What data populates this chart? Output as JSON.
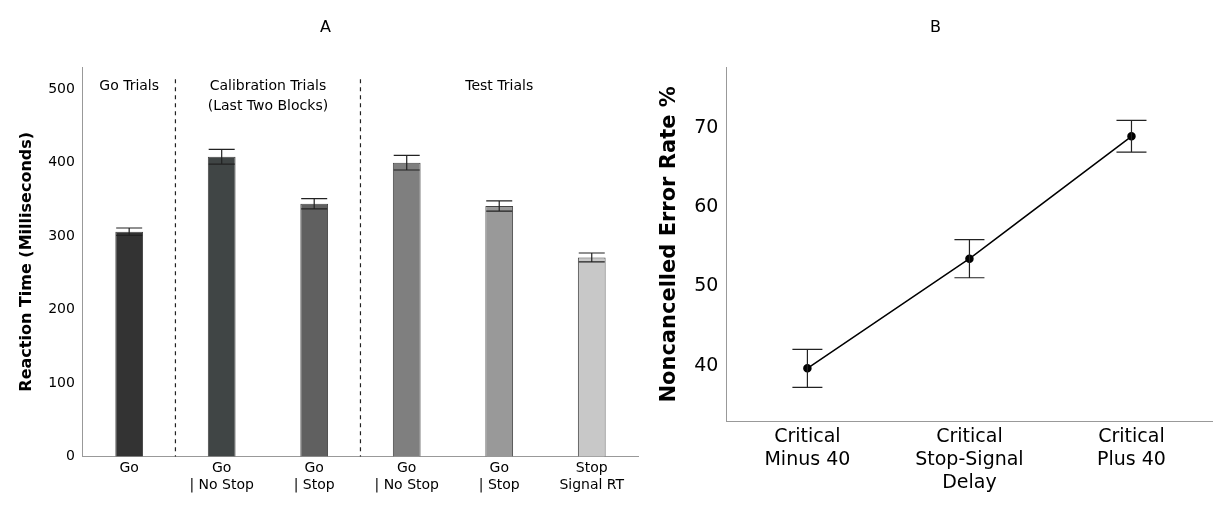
{
  "chart_data": [
    {
      "type": "bar",
      "title": "A",
      "ylabel": "Reaction Time (Milliseconds)",
      "categories": [
        "Go",
        "Go\n| No Stop",
        "Go\n| Stop",
        "Go\n| No Stop",
        "Go\n| Stop",
        "Stop\nSignal RT"
      ],
      "values": [
        306,
        408,
        344,
        400,
        341,
        271
      ],
      "errors": [
        5,
        10,
        7,
        10,
        7,
        6
      ],
      "colors": [
        "#333333",
        "#404545",
        "#606060",
        "#7f7f7f",
        "#999999",
        "#c8c8c8"
      ],
      "ylim": [
        0,
        530
      ],
      "yticks": [
        0,
        100,
        200,
        300,
        400,
        500
      ],
      "grid": false,
      "legend": false,
      "annotations": [
        "Go Trials",
        "Calibration Trials\n(Last Two Blocks)",
        "Test Trials"
      ]
    },
    {
      "type": "line",
      "title": "B",
      "ylabel": "Noncancelled Error Rate %",
      "categories": [
        "Critical\nMinus 40",
        "Critical\nStop-Signal\nDelay",
        "Critical\nPlus 40"
      ],
      "values": [
        39.7,
        53.5,
        68.9
      ],
      "errors": [
        2.4,
        2.4,
        2.0
      ],
      "color": "#000000",
      "marker": "circle",
      "line_style": "solid",
      "ylim": [
        33,
        77.6
      ],
      "yticks": [
        40,
        50,
        60,
        70
      ],
      "grid": false,
      "legend": false
    }
  ]
}
